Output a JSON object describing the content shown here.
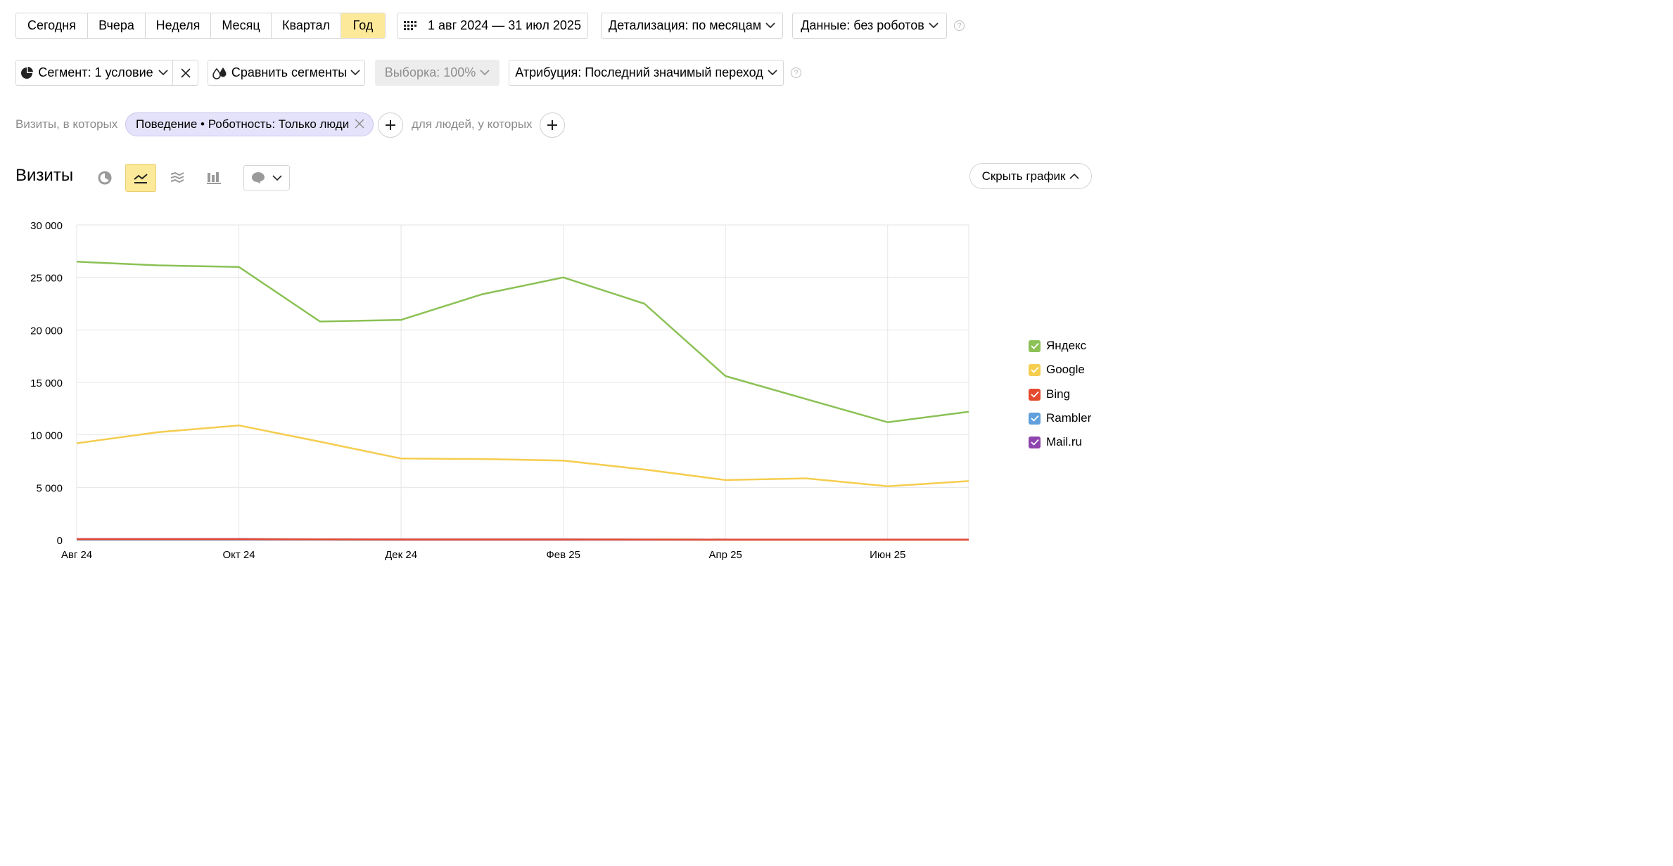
{
  "period_tabs": [
    {
      "label": "Сегодня",
      "active": false
    },
    {
      "label": "Вчера",
      "active": false
    },
    {
      "label": "Неделя",
      "active": false
    },
    {
      "label": "Месяц",
      "active": false
    },
    {
      "label": "Квартал",
      "active": false
    },
    {
      "label": "Год",
      "active": true
    }
  ],
  "date_range": "1 авг 2024 — 31 июл 2025",
  "detalization": "Детализация: по месяцам",
  "data_filter": "Данные: без роботов",
  "help_glyph": "?",
  "segment": "Сегмент: 1 условие",
  "compare_segments": "Сравнить сегменты",
  "sampling": "Выборка: 100%",
  "attribution": "Атрибуция: Последний значимый переход",
  "filter_line": {
    "visits_prefix": "Визиты, в которых",
    "chip": "Поведение • Роботность: Только люди",
    "people_prefix": "для людей, у которых"
  },
  "report": {
    "title": "Визиты",
    "hide_chart": "Скрыть график"
  },
  "colors": {
    "active_tab": "#fde99a",
    "yandex": "#8bc155",
    "google": "#f5cd4f",
    "bing": "#e64a2e",
    "rambler": "#5e9fdc",
    "mailru": "#8e44ad"
  },
  "chart_data": {
    "type": "line",
    "categories": [
      "Авг 24",
      "Сен 24",
      "Окт 24",
      "Ноя 24",
      "Дек 24",
      "Янв 25",
      "Фев 25",
      "Мар 25",
      "Апр 25",
      "Май 25",
      "Июн 25",
      "Июл 25"
    ],
    "x_tick_labels": [
      "Авг 24",
      "Окт 24",
      "Дек 24",
      "Фев 25",
      "Апр 25",
      "Июн 25"
    ],
    "y_ticks": [
      0,
      5000,
      10000,
      15000,
      20000,
      25000,
      30000
    ],
    "y_tick_labels": [
      "0",
      "5 000",
      "10 000",
      "15 000",
      "20 000",
      "25 000",
      "30 000"
    ],
    "ylim": [
      0,
      30000
    ],
    "grid": true,
    "legend_position": "right",
    "series": [
      {
        "name": "Яндекс",
        "color": "#8bc155",
        "values": [
          26500,
          26150,
          26000,
          20800,
          20950,
          23400,
          25000,
          22500,
          15600,
          13400,
          11200,
          12200
        ]
      },
      {
        "name": "Google",
        "color": "#f5cd4f",
        "values": [
          9200,
          10250,
          10900,
          9350,
          7750,
          7700,
          7550,
          6700,
          5700,
          5850,
          5100,
          5600
        ]
      },
      {
        "name": "Bing",
        "color": "#e64a2e",
        "values": [
          60,
          60,
          60,
          40,
          30,
          30,
          30,
          30,
          20,
          20,
          20,
          20
        ]
      },
      {
        "name": "Rambler",
        "color": "#5e9fdc",
        "values": [
          20,
          20,
          20,
          15,
          10,
          10,
          10,
          10,
          10,
          10,
          10,
          10
        ]
      },
      {
        "name": "Mail.ru",
        "color": "#8e44ad",
        "values": [
          80,
          80,
          80,
          50,
          40,
          40,
          40,
          30,
          30,
          30,
          30,
          30
        ]
      }
    ]
  }
}
